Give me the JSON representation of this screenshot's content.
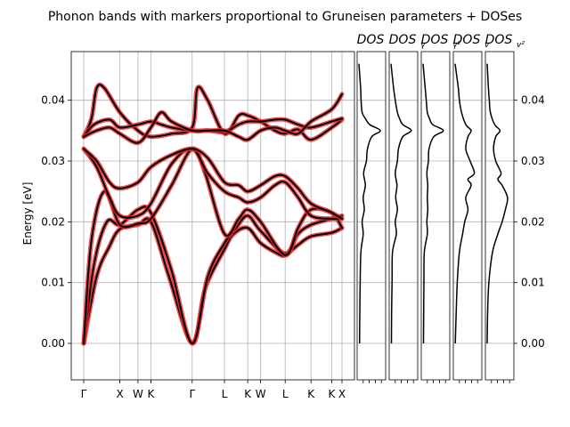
{
  "chart_data": [
    {
      "type": "line",
      "title": "Phonon bands with markers proportional to Gruneisen parameters + DOSes",
      "xlabel": "",
      "ylabel": "Energy [eV]",
      "ylim": [
        -0.006,
        0.048
      ],
      "yticks": [
        "0.00",
        "0.01",
        "0.02",
        "0.03",
        "0.04"
      ],
      "ytick_values": [
        0.0,
        0.01,
        0.02,
        0.03,
        0.04
      ],
      "high_symmetry_labels": [
        "Γ",
        "X",
        "W",
        "K",
        "Γ",
        "L",
        "K",
        "W",
        "L",
        "K",
        "K",
        "X"
      ],
      "high_symmetry_positions": [
        0,
        0.14,
        0.21,
        0.26,
        0.42,
        0.545,
        0.635,
        0.685,
        0.78,
        0.88,
        0.96,
        1.0
      ],
      "grid": true,
      "marker_color": "#e8272b",
      "line_color": "#000000",
      "series": [
        {
          "values": [
            [
              0,
              0
            ],
            [
              0.05,
              0.011
            ],
            [
              0.1,
              0.016
            ],
            [
              0.14,
              0.0188
            ],
            [
              0.21,
              0.0195
            ],
            [
              0.26,
              0.02
            ],
            [
              0.33,
              0.011
            ],
            [
              0.42,
              0.0
            ],
            [
              0.47,
              0.009
            ],
            [
              0.545,
              0.0155
            ],
            [
              0.58,
              0.018
            ],
            [
              0.635,
              0.019
            ],
            [
              0.685,
              0.0165
            ],
            [
              0.75,
              0.0148
            ],
            [
              0.78,
              0.0145
            ],
            [
              0.83,
              0.0162
            ],
            [
              0.88,
              0.0176
            ],
            [
              0.96,
              0.0182
            ],
            [
              1.0,
              0.019
            ]
          ]
        },
        {
          "values": [
            [
              0,
              0
            ],
            [
              0.04,
              0.013
            ],
            [
              0.09,
              0.02
            ],
            [
              0.14,
              0.0195
            ],
            [
              0.21,
              0.022
            ],
            [
              0.26,
              0.0215
            ],
            [
              0.34,
              0.012
            ],
            [
              0.42,
              0.0
            ],
            [
              0.48,
              0.011
            ],
            [
              0.545,
              0.0165
            ],
            [
              0.59,
              0.019
            ],
            [
              0.635,
              0.021
            ],
            [
              0.685,
              0.0185
            ],
            [
              0.78,
              0.0148
            ],
            [
              0.83,
              0.018
            ],
            [
              0.88,
              0.0195
            ],
            [
              0.96,
              0.0205
            ],
            [
              1.0,
              0.021
            ]
          ]
        },
        {
          "values": [
            [
              0,
              0
            ],
            [
              0.03,
              0.017
            ],
            [
              0.08,
              0.025
            ],
            [
              0.14,
              0.0195
            ],
            [
              0.21,
              0.0197
            ],
            [
              0.26,
              0.0205
            ],
            [
              0.34,
              0.026
            ],
            [
              0.42,
              0.032
            ],
            [
              0.47,
              0.028
            ],
            [
              0.545,
              0.018
            ],
            [
              0.6,
              0.0205
            ],
            [
              0.635,
              0.022
            ],
            [
              0.685,
              0.02
            ],
            [
              0.78,
              0.0145
            ],
            [
              0.83,
              0.019
            ],
            [
              0.88,
              0.022
            ],
            [
              0.96,
              0.0215
            ],
            [
              1.0,
              0.019
            ]
          ]
        },
        {
          "values": [
            [
              0,
              0.032
            ],
            [
              0.05,
              0.029
            ],
            [
              0.1,
              0.024
            ],
            [
              0.14,
              0.021
            ],
            [
              0.21,
              0.021
            ],
            [
              0.26,
              0.023
            ],
            [
              0.34,
              0.0295
            ],
            [
              0.42,
              0.032
            ],
            [
              0.48,
              0.028
            ],
            [
              0.545,
              0.025
            ],
            [
              0.6,
              0.024
            ],
            [
              0.635,
              0.0232
            ],
            [
              0.685,
              0.024
            ],
            [
              0.74,
              0.026
            ],
            [
              0.78,
              0.0265
            ],
            [
              0.83,
              0.024
            ],
            [
              0.88,
              0.021
            ],
            [
              0.96,
              0.0205
            ],
            [
              1.0,
              0.0205
            ]
          ]
        },
        {
          "values": [
            [
              0,
              0.032
            ],
            [
              0.05,
              0.03
            ],
            [
              0.1,
              0.0265
            ],
            [
              0.14,
              0.0255
            ],
            [
              0.21,
              0.0265
            ],
            [
              0.26,
              0.029
            ],
            [
              0.34,
              0.031
            ],
            [
              0.42,
              0.032
            ],
            [
              0.48,
              0.0305
            ],
            [
              0.545,
              0.0265
            ],
            [
              0.6,
              0.026
            ],
            [
              0.635,
              0.025
            ],
            [
              0.685,
              0.026
            ],
            [
              0.74,
              0.0275
            ],
            [
              0.78,
              0.0275
            ],
            [
              0.83,
              0.0255
            ],
            [
              0.88,
              0.023
            ],
            [
              0.96,
              0.0215
            ],
            [
              1.0,
              0.0205
            ]
          ]
        },
        {
          "values": [
            [
              0,
              0.034
            ],
            [
              0.03,
              0.037
            ],
            [
              0.05,
              0.042
            ],
            [
              0.08,
              0.042
            ],
            [
              0.14,
              0.038
            ],
            [
              0.21,
              0.035
            ],
            [
              0.26,
              0.034
            ],
            [
              0.34,
              0.0345
            ],
            [
              0.42,
              0.0355
            ],
            [
              0.44,
              0.042
            ],
            [
              0.48,
              0.04
            ],
            [
              0.545,
              0.0345
            ],
            [
              0.6,
              0.0375
            ],
            [
              0.635,
              0.0375
            ],
            [
              0.685,
              0.0365
            ],
            [
              0.74,
              0.035
            ],
            [
              0.78,
              0.0345
            ],
            [
              0.83,
              0.0352
            ],
            [
              0.88,
              0.0335
            ],
            [
              0.96,
              0.0355
            ],
            [
              1.0,
              0.0368
            ]
          ]
        },
        {
          "values": [
            [
              0,
              0.034
            ],
            [
              0.04,
              0.036
            ],
            [
              0.1,
              0.0368
            ],
            [
              0.14,
              0.0355
            ],
            [
              0.21,
              0.036
            ],
            [
              0.26,
              0.0365
            ],
            [
              0.3,
              0.036
            ],
            [
              0.34,
              0.0355
            ],
            [
              0.42,
              0.035
            ],
            [
              0.48,
              0.035
            ],
            [
              0.545,
              0.0348
            ],
            [
              0.6,
              0.036
            ],
            [
              0.635,
              0.0365
            ],
            [
              0.685,
              0.0365
            ],
            [
              0.74,
              0.0368
            ],
            [
              0.78,
              0.0368
            ],
            [
              0.83,
              0.036
            ],
            [
              0.88,
              0.0355
            ],
            [
              0.96,
              0.0365
            ],
            [
              1.0,
              0.037
            ]
          ]
        },
        {
          "values": [
            [
              0,
              0.034
            ],
            [
              0.05,
              0.035
            ],
            [
              0.1,
              0.0355
            ],
            [
              0.14,
              0.0345
            ],
            [
              0.21,
              0.033
            ],
            [
              0.26,
              0.0355
            ],
            [
              0.3,
              0.038
            ],
            [
              0.34,
              0.0365
            ],
            [
              0.42,
              0.035
            ],
            [
              0.48,
              0.035
            ],
            [
              0.545,
              0.035
            ],
            [
              0.6,
              0.034
            ],
            [
              0.635,
              0.0335
            ],
            [
              0.685,
              0.035
            ],
            [
              0.74,
              0.0355
            ],
            [
              0.78,
              0.035
            ],
            [
              0.83,
              0.0345
            ],
            [
              0.88,
              0.0365
            ],
            [
              0.96,
              0.0385
            ],
            [
              1.0,
              0.041
            ]
          ]
        }
      ],
      "panels": [
        {
          "title": "DOS",
          "subscript": ""
        },
        {
          "title": "DOS",
          "subscript": "γ"
        },
        {
          "title": "DOS",
          "subscript": "γ²"
        },
        {
          "title": "DOS",
          "subscript": "v"
        },
        {
          "title": "DOS",
          "subscript": "v²"
        }
      ],
      "dos_curves": [
        {
          "values": [
            [
              0,
              0.03
            ],
            [
              0.005,
              0.04
            ],
            [
              0.01,
              0.06
            ],
            [
              0.015,
              0.09
            ],
            [
              0.018,
              0.2
            ],
            [
              0.02,
              0.15
            ],
            [
              0.022,
              0.25
            ],
            [
              0.024,
              0.2
            ],
            [
              0.026,
              0.3
            ],
            [
              0.028,
              0.22
            ],
            [
              0.03,
              0.35
            ],
            [
              0.032,
              0.4
            ],
            [
              0.034,
              0.6
            ],
            [
              0.035,
              1.0
            ],
            [
              0.036,
              0.5
            ],
            [
              0.037,
              0.3
            ],
            [
              0.038,
              0.15
            ],
            [
              0.04,
              0.1
            ],
            [
              0.042,
              0.08
            ],
            [
              0.046,
              0.0
            ]
          ]
        },
        {
          "values": [
            [
              0,
              0.02
            ],
            [
              0.005,
              0.03
            ],
            [
              0.01,
              0.05
            ],
            [
              0.015,
              0.07
            ],
            [
              0.018,
              0.25
            ],
            [
              0.02,
              0.2
            ],
            [
              0.022,
              0.3
            ],
            [
              0.024,
              0.22
            ],
            [
              0.026,
              0.28
            ],
            [
              0.028,
              0.2
            ],
            [
              0.03,
              0.3
            ],
            [
              0.032,
              0.35
            ],
            [
              0.034,
              0.55
            ],
            [
              0.035,
              0.95
            ],
            [
              0.036,
              0.55
            ],
            [
              0.037,
              0.4
            ],
            [
              0.038,
              0.3
            ],
            [
              0.04,
              0.2
            ],
            [
              0.042,
              0.12
            ],
            [
              0.046,
              0.0
            ]
          ]
        },
        {
          "values": [
            [
              0,
              0.02
            ],
            [
              0.005,
              0.03
            ],
            [
              0.01,
              0.04
            ],
            [
              0.015,
              0.06
            ],
            [
              0.018,
              0.2
            ],
            [
              0.02,
              0.18
            ],
            [
              0.022,
              0.22
            ],
            [
              0.024,
              0.2
            ],
            [
              0.026,
              0.22
            ],
            [
              0.028,
              0.18
            ],
            [
              0.03,
              0.25
            ],
            [
              0.032,
              0.28
            ],
            [
              0.034,
              0.5
            ],
            [
              0.035,
              0.95
            ],
            [
              0.036,
              0.45
            ],
            [
              0.037,
              0.3
            ],
            [
              0.038,
              0.2
            ],
            [
              0.04,
              0.15
            ],
            [
              0.042,
              0.1
            ],
            [
              0.046,
              0.0
            ]
          ]
        },
        {
          "values": [
            [
              0,
              0.01
            ],
            [
              0.005,
              0.05
            ],
            [
              0.01,
              0.1
            ],
            [
              0.015,
              0.2
            ],
            [
              0.018,
              0.35
            ],
            [
              0.02,
              0.45
            ],
            [
              0.022,
              0.6
            ],
            [
              0.024,
              0.5
            ],
            [
              0.026,
              0.75
            ],
            [
              0.027,
              0.6
            ],
            [
              0.028,
              0.9
            ],
            [
              0.03,
              0.7
            ],
            [
              0.032,
              0.5
            ],
            [
              0.034,
              0.6
            ],
            [
              0.035,
              0.75
            ],
            [
              0.036,
              0.5
            ],
            [
              0.038,
              0.3
            ],
            [
              0.04,
              0.2
            ],
            [
              0.042,
              0.15
            ],
            [
              0.046,
              0.0
            ]
          ]
        },
        {
          "values": [
            [
              0,
              0.0
            ],
            [
              0.005,
              0.02
            ],
            [
              0.01,
              0.08
            ],
            [
              0.015,
              0.25
            ],
            [
              0.018,
              0.5
            ],
            [
              0.02,
              0.7
            ],
            [
              0.022,
              0.85
            ],
            [
              0.024,
              0.95
            ],
            [
              0.026,
              0.7
            ],
            [
              0.027,
              0.5
            ],
            [
              0.028,
              0.65
            ],
            [
              0.03,
              0.4
            ],
            [
              0.032,
              0.3
            ],
            [
              0.034,
              0.4
            ],
            [
              0.035,
              0.6
            ],
            [
              0.036,
              0.35
            ],
            [
              0.038,
              0.15
            ],
            [
              0.04,
              0.1
            ],
            [
              0.042,
              0.06
            ],
            [
              0.046,
              0.0
            ]
          ]
        }
      ]
    }
  ]
}
